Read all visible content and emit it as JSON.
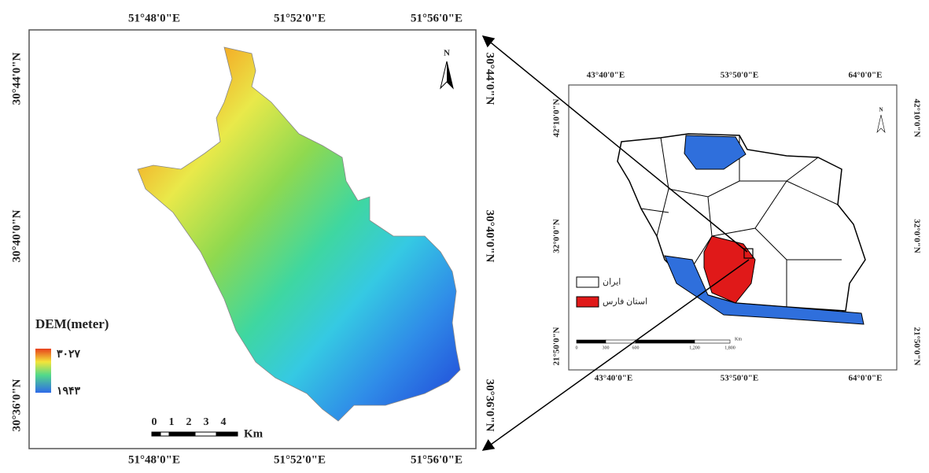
{
  "dem_map": {
    "lon_labels_top": [
      "51°48'0\"E",
      "51°52'0\"E",
      "51°56'0\"E"
    ],
    "lon_labels_bottom": [
      "51°48'0\"E",
      "51°52'0\"E",
      "51°56'0\"E"
    ],
    "lat_labels_left": [
      "30°44'0\"N",
      "30°40'0\"N",
      "30°36'0\"N"
    ],
    "lat_labels_right": [
      "30°44'0\"N",
      "30°40'0\"N",
      "30°36'0\"N"
    ],
    "north": "N",
    "legend": {
      "title": "DEM(meter)",
      "high": "۳۰۲۷",
      "low": "۱۹۴۳"
    },
    "scale": {
      "labels": [
        "0",
        "1",
        "2",
        "3",
        "4"
      ],
      "unit": "Km"
    }
  },
  "iran_map": {
    "lon_labels_top": [
      "43°40'0\"E",
      "53°50'0\"E",
      "64°0'0\"E"
    ],
    "lon_labels_bottom": [
      "43°40'0\"E",
      "53°50'0\"E",
      "64°0'0\"E"
    ],
    "lat_labels_left": [
      "42°10'0\"N",
      "32°0'0\"N",
      "21°50'0\"N"
    ],
    "lat_labels_right": [
      "42°10'0\"N",
      "32°0'0\"N",
      "21°50'0\"N"
    ],
    "north": "N",
    "legend": [
      "ایران",
      "استان فارس"
    ],
    "scale": {
      "labels": [
        "0",
        "300",
        "600",
        "1,200",
        "1,800"
      ],
      "unit": "Km"
    }
  }
}
